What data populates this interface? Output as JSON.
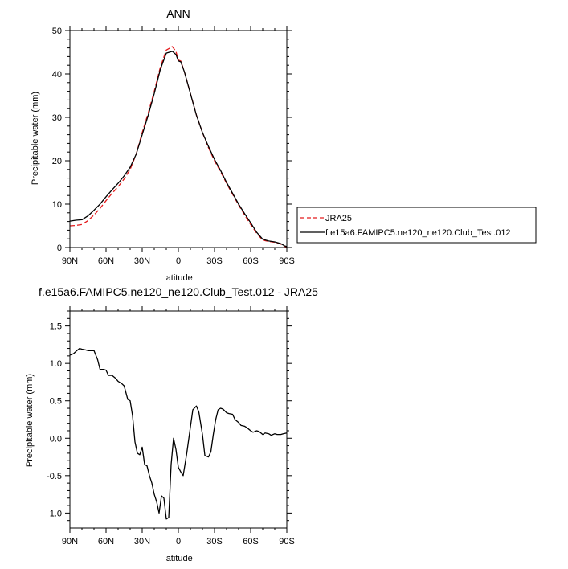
{
  "chart_data": [
    {
      "type": "line",
      "title": "ANN",
      "xlabel": "latitude",
      "ylabel": "Precipitable water (mm)",
      "xlim": [
        90,
        -90
      ],
      "ylim": [
        0,
        50
      ],
      "x_tick_values": [
        90,
        60,
        30,
        0,
        -30,
        -60,
        -90
      ],
      "x_tick_labels": [
        "90N",
        "60N",
        "30N",
        "0",
        "30S",
        "60S",
        "90S"
      ],
      "y_ticks": [
        0,
        10,
        20,
        30,
        40,
        50
      ],
      "legend": {
        "placement": "right-bottom"
      },
      "series": [
        {
          "name": "JRA25",
          "color": "#e41a1c",
          "dash": "dashed",
          "x": [
            90,
            85,
            80,
            75,
            70,
            65,
            60,
            55,
            50,
            45,
            40,
            35,
            30,
            25,
            20,
            15,
            10,
            5,
            2,
            0,
            -2,
            -5,
            -10,
            -15,
            -20,
            -25,
            -30,
            -35,
            -40,
            -45,
            -50,
            -55,
            -60,
            -65,
            -70,
            -75,
            -80,
            -85,
            -88,
            -90
          ],
          "values": [
            5.0,
            5.1,
            5.3,
            6.2,
            7.5,
            9.0,
            10.8,
            12.5,
            14.0,
            15.8,
            18.0,
            21.5,
            26.5,
            31.0,
            36.0,
            41.5,
            45.5,
            46.3,
            45.2,
            43.2,
            43.0,
            40.5,
            35.5,
            30.5,
            26.5,
            23.0,
            20.0,
            17.5,
            14.8,
            12.3,
            9.8,
            7.5,
            5.3,
            3.3,
            1.7,
            1.4,
            1.2,
            0.8,
            0.3,
            0.1
          ]
        },
        {
          "name": "f.e15a6.FAMIPC5.ne120_ne120.Club_Test.012",
          "color": "#000000",
          "dash": "solid",
          "x": [
            90,
            85,
            80,
            75,
            70,
            65,
            60,
            55,
            50,
            45,
            40,
            35,
            30,
            25,
            20,
            15,
            10,
            5,
            2,
            0,
            -2,
            -5,
            -10,
            -15,
            -20,
            -25,
            -30,
            -35,
            -40,
            -45,
            -50,
            -55,
            -60,
            -65,
            -70,
            -75,
            -80,
            -85,
            -88,
            -90
          ],
          "values": [
            6.1,
            6.3,
            6.4,
            7.3,
            8.6,
            10.0,
            11.7,
            13.3,
            14.8,
            16.5,
            18.5,
            21.5,
            26.0,
            30.5,
            35.5,
            41.0,
            44.8,
            45.2,
            44.5,
            43.0,
            42.8,
            40.5,
            35.5,
            30.5,
            26.5,
            23.3,
            20.3,
            17.8,
            15.0,
            12.5,
            10.0,
            7.8,
            5.7,
            3.5,
            1.9,
            1.5,
            1.3,
            0.9,
            0.4,
            0.2
          ]
        }
      ]
    },
    {
      "type": "line",
      "title": "f.e15a6.FAMIPC5.ne120_ne120.Club_Test.012 - JRA25",
      "xlabel": "latitude",
      "ylabel": "Precipitable water (mm)",
      "xlim": [
        90,
        -90
      ],
      "ylim": [
        -1.2,
        1.7
      ],
      "x_tick_values": [
        90,
        60,
        30,
        0,
        -30,
        -60,
        -90
      ],
      "x_tick_labels": [
        "90N",
        "60N",
        "30N",
        "0",
        "30S",
        "60S",
        "90S"
      ],
      "y_ticks": [
        -1.0,
        -0.5,
        0.0,
        0.5,
        1.0,
        1.5
      ],
      "y_tick_labels": [
        "-1.0",
        "-0.5",
        "0.0",
        "0.5",
        "1.0",
        "1.5"
      ],
      "series": [
        {
          "color": "#000000",
          "x": [
            90,
            87,
            85,
            82,
            80,
            77,
            75,
            72,
            70,
            67,
            65,
            62,
            60,
            58,
            55,
            52,
            50,
            47,
            45,
            42,
            40,
            38,
            36,
            34,
            32,
            30,
            28,
            26,
            24,
            22,
            20,
            18,
            16,
            14,
            12,
            10,
            8,
            6,
            4,
            2,
            0,
            -2,
            -4,
            -7,
            -10,
            -12,
            -15,
            -17,
            -20,
            -22,
            -25,
            -27,
            -29,
            -31,
            -33,
            -35,
            -37,
            -40,
            -42,
            -45,
            -47,
            -50,
            -52,
            -55,
            -57,
            -60,
            -62,
            -65,
            -67,
            -70,
            -72,
            -75,
            -77,
            -80,
            -82,
            -85,
            -87,
            -90
          ],
          "values": [
            1.11,
            1.13,
            1.16,
            1.2,
            1.19,
            1.18,
            1.17,
            1.17,
            1.17,
            1.05,
            0.92,
            0.92,
            0.91,
            0.84,
            0.84,
            0.8,
            0.76,
            0.73,
            0.7,
            0.52,
            0.5,
            0.3,
            -0.05,
            -0.2,
            -0.22,
            -0.12,
            -0.35,
            -0.37,
            -0.5,
            -0.6,
            -0.75,
            -0.85,
            -1.0,
            -0.77,
            -0.8,
            -1.08,
            -1.06,
            -0.35,
            0.0,
            -0.15,
            -0.39,
            -0.45,
            -0.5,
            -0.2,
            0.15,
            0.38,
            0.43,
            0.35,
            0.05,
            -0.23,
            -0.25,
            -0.18,
            0.05,
            0.25,
            0.38,
            0.4,
            0.39,
            0.34,
            0.33,
            0.32,
            0.25,
            0.21,
            0.17,
            0.16,
            0.14,
            0.1,
            0.08,
            0.1,
            0.09,
            0.05,
            0.07,
            0.06,
            0.04,
            0.06,
            0.05,
            0.05,
            0.06,
            0.07
          ]
        }
      ]
    }
  ]
}
